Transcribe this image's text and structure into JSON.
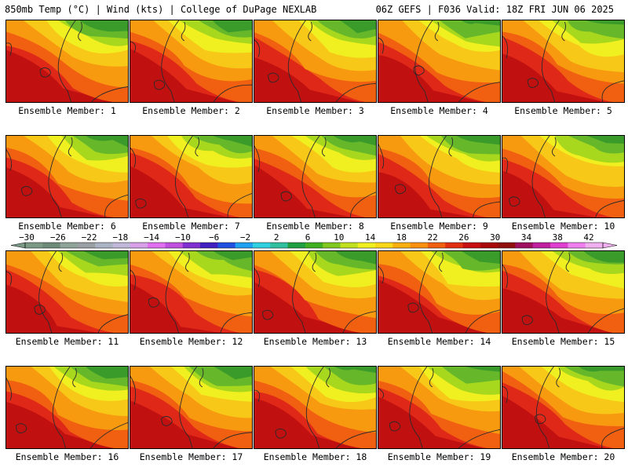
{
  "header": {
    "left": "850mb Temp (°C) | Wind (kts) | College of DuPage NEXLAB",
    "right": "06Z GEFS | F036 Valid: 18Z FRI JUN 06 2025"
  },
  "panels": [
    {
      "label": "Ensemble Member: 1"
    },
    {
      "label": "Ensemble Member: 2"
    },
    {
      "label": "Ensemble Member: 3"
    },
    {
      "label": "Ensemble Member: 4"
    },
    {
      "label": "Ensemble Member: 5"
    },
    {
      "label": "Ensemble Member: 6"
    },
    {
      "label": "Ensemble Member: 7"
    },
    {
      "label": "Ensemble Member: 8"
    },
    {
      "label": "Ensemble Member: 9"
    },
    {
      "label": "Ensemble Member: 10"
    },
    {
      "label": "Ensemble Member: 11"
    },
    {
      "label": "Ensemble Member: 12"
    },
    {
      "label": "Ensemble Member: 13"
    },
    {
      "label": "Ensemble Member: 14"
    },
    {
      "label": "Ensemble Member: 15"
    },
    {
      "label": "Ensemble Member: 16"
    },
    {
      "label": "Ensemble Member: 17"
    },
    {
      "label": "Ensemble Member: 18"
    },
    {
      "label": "Ensemble Member: 19"
    },
    {
      "label": "Ensemble Member: 20"
    }
  ],
  "colorbar": {
    "tick_labels": [
      "−30",
      "−26",
      "−22",
      "−18",
      "−14",
      "−10",
      "−6",
      "−2",
      "2",
      "6",
      "10",
      "14",
      "18",
      "22",
      "26",
      "30",
      "34",
      "38",
      "42"
    ],
    "colors": [
      "#7a9a86",
      "#6e8a78",
      "#8fa49a",
      "#9aa0a4",
      "#aab4c4",
      "#c0b8d8",
      "#d8a0e8",
      "#e070f0",
      "#c050e0",
      "#8030d0",
      "#4020c0",
      "#2050e0",
      "#20a0f0",
      "#30d0e0",
      "#30c0a0",
      "#20a040",
      "#40b020",
      "#80c820",
      "#c0e020",
      "#f0f020",
      "#f8d818",
      "#f8b010",
      "#f89010",
      "#f06010",
      "#e03010",
      "#c81010",
      "#a80808",
      "#901010",
      "#a01060",
      "#c020a0",
      "#e040d0",
      "#f080f0",
      "#f0b0f0"
    ]
  },
  "map_colors": {
    "green_dark": "#3a9a2a",
    "green": "#66b82a",
    "lime": "#a8d81e",
    "yellow": "#f0f020",
    "gold": "#f8c818",
    "orange": "#f89a10",
    "red_orange": "#f06010",
    "red": "#e02818",
    "dark_red": "#c01010"
  }
}
